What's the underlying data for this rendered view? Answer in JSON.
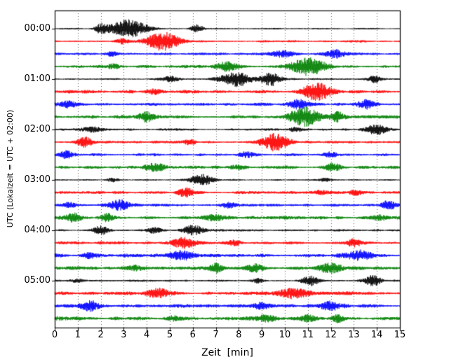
{
  "chart_data": {
    "type": "line",
    "subtype": "helicorder-dayplot-seismogram",
    "title": "",
    "xlabel": "Zeit  [min]",
    "ylabel": "UTC (Lokalzeit = UTC + 02:00)",
    "xlim": [
      0,
      15
    ],
    "x_ticks": [
      "0",
      "1",
      "2",
      "3",
      "4",
      "5",
      "6",
      "7",
      "8",
      "9",
      "10",
      "11",
      "12",
      "13",
      "14",
      "15"
    ],
    "y_tick_labels": [
      "00:00",
      "01:00",
      "02:00",
      "03:00",
      "04:00",
      "05:00"
    ],
    "minutes_per_line": 15,
    "lines_per_hour": 4,
    "num_traces": 24,
    "color_cycle": [
      "#000000",
      "#ff0000",
      "#0000ff",
      "#008000"
    ],
    "grid": {
      "vertical": "dotted",
      "horizontal": "none"
    },
    "legend": "none",
    "bursts_format": "[center_minute, sigma_minutes, relative_amplitude]",
    "traces": [
      {
        "start": "00:00",
        "color": "#000000",
        "base": 0.06,
        "bursts": [
          [
            3.2,
            0.8,
            1.0
          ],
          [
            6.2,
            0.25,
            0.45
          ],
          [
            2.0,
            0.25,
            0.5
          ]
        ]
      },
      {
        "start": "00:15",
        "color": "#ff0000",
        "base": 0.1,
        "bursts": [
          [
            4.7,
            0.7,
            1.0
          ],
          [
            2.9,
            0.3,
            0.25
          ]
        ]
      },
      {
        "start": "00:30",
        "color": "#0000ff",
        "base": 0.1,
        "bursts": [
          [
            9.9,
            0.5,
            0.4
          ],
          [
            12.2,
            0.45,
            0.45
          ],
          [
            2.5,
            0.3,
            0.2
          ]
        ]
      },
      {
        "start": "00:45",
        "color": "#008000",
        "base": 0.12,
        "bursts": [
          [
            7.5,
            0.5,
            0.5
          ],
          [
            11.0,
            0.8,
            0.9
          ],
          [
            2.5,
            0.3,
            0.25
          ]
        ]
      },
      {
        "start": "01:00",
        "color": "#000000",
        "base": 0.08,
        "bursts": [
          [
            7.9,
            0.7,
            0.8
          ],
          [
            9.4,
            0.4,
            0.7
          ],
          [
            5.0,
            0.4,
            0.3
          ],
          [
            13.9,
            0.25,
            0.35
          ]
        ]
      },
      {
        "start": "01:15",
        "color": "#ff0000",
        "base": 0.14,
        "bursts": [
          [
            11.4,
            0.6,
            0.9
          ],
          [
            4.3,
            0.3,
            0.25
          ]
        ]
      },
      {
        "start": "01:30",
        "color": "#0000ff",
        "base": 0.13,
        "bursts": [
          [
            0.6,
            0.3,
            0.4
          ],
          [
            10.6,
            0.5,
            0.45
          ],
          [
            13.5,
            0.35,
            0.45
          ]
        ]
      },
      {
        "start": "01:45",
        "color": "#008000",
        "base": 0.14,
        "bursts": [
          [
            4.0,
            0.4,
            0.45
          ],
          [
            10.9,
            0.7,
            0.95
          ],
          [
            12.3,
            0.3,
            0.5
          ]
        ]
      },
      {
        "start": "02:00",
        "color": "#000000",
        "base": 0.09,
        "bursts": [
          [
            1.6,
            0.5,
            0.3
          ],
          [
            14.0,
            0.45,
            0.55
          ],
          [
            10.5,
            0.3,
            0.25
          ]
        ]
      },
      {
        "start": "02:15",
        "color": "#ff0000",
        "base": 0.12,
        "bursts": [
          [
            1.3,
            0.35,
            0.45
          ],
          [
            9.6,
            0.55,
            1.0
          ],
          [
            5.9,
            0.25,
            0.25
          ]
        ]
      },
      {
        "start": "02:30",
        "color": "#0000ff",
        "base": 0.12,
        "bursts": [
          [
            0.5,
            0.3,
            0.45
          ],
          [
            8.3,
            0.35,
            0.3
          ],
          [
            12.0,
            0.3,
            0.25
          ]
        ]
      },
      {
        "start": "02:45",
        "color": "#008000",
        "base": 0.13,
        "bursts": [
          [
            4.4,
            0.5,
            0.45
          ],
          [
            12.1,
            0.35,
            0.45
          ],
          [
            8.0,
            0.3,
            0.25
          ]
        ]
      },
      {
        "start": "03:00",
        "color": "#000000",
        "base": 0.07,
        "bursts": [
          [
            6.4,
            0.5,
            0.6
          ],
          [
            2.5,
            0.25,
            0.2
          ],
          [
            11.8,
            0.3,
            0.15
          ]
        ]
      },
      {
        "start": "03:15",
        "color": "#ff0000",
        "base": 0.12,
        "bursts": [
          [
            5.7,
            0.3,
            0.55
          ],
          [
            11.5,
            0.3,
            0.2
          ],
          [
            13.1,
            0.3,
            0.25
          ]
        ]
      },
      {
        "start": "03:30",
        "color": "#0000ff",
        "base": 0.12,
        "bursts": [
          [
            2.8,
            0.45,
            0.55
          ],
          [
            14.5,
            0.3,
            0.5
          ],
          [
            7.5,
            0.3,
            0.25
          ],
          [
            0.6,
            0.3,
            0.3
          ]
        ]
      },
      {
        "start": "03:45",
        "color": "#008000",
        "base": 0.14,
        "bursts": [
          [
            0.8,
            0.35,
            0.5
          ],
          [
            2.3,
            0.3,
            0.35
          ],
          [
            6.9,
            0.4,
            0.3
          ],
          [
            14.1,
            0.3,
            0.3
          ]
        ]
      },
      {
        "start": "04:00",
        "color": "#000000",
        "base": 0.09,
        "bursts": [
          [
            2.0,
            0.35,
            0.45
          ],
          [
            6.0,
            0.45,
            0.55
          ],
          [
            4.3,
            0.3,
            0.3
          ]
        ]
      },
      {
        "start": "04:15",
        "color": "#ff0000",
        "base": 0.13,
        "bursts": [
          [
            5.6,
            0.5,
            0.5
          ],
          [
            13.0,
            0.35,
            0.4
          ],
          [
            7.8,
            0.3,
            0.3
          ]
        ]
      },
      {
        "start": "04:30",
        "color": "#0000ff",
        "base": 0.15,
        "bursts": [
          [
            5.5,
            0.5,
            0.5
          ],
          [
            13.2,
            0.6,
            0.5
          ],
          [
            1.5,
            0.3,
            0.3
          ]
        ]
      },
      {
        "start": "04:45",
        "color": "#008000",
        "base": 0.15,
        "bursts": [
          [
            7.0,
            0.3,
            0.4
          ],
          [
            8.7,
            0.3,
            0.4
          ],
          [
            12.0,
            0.5,
            0.5
          ],
          [
            3.5,
            0.3,
            0.2
          ]
        ]
      },
      {
        "start": "05:00",
        "color": "#000000",
        "base": 0.08,
        "bursts": [
          [
            11.1,
            0.35,
            0.5
          ],
          [
            13.8,
            0.4,
            0.55
          ],
          [
            8.8,
            0.25,
            0.25
          ],
          [
            1.0,
            0.25,
            0.2
          ]
        ]
      },
      {
        "start": "05:15",
        "color": "#ff0000",
        "base": 0.14,
        "bursts": [
          [
            4.5,
            0.45,
            0.5
          ],
          [
            10.4,
            0.7,
            0.55
          ]
        ]
      },
      {
        "start": "05:30",
        "color": "#0000ff",
        "base": 0.14,
        "bursts": [
          [
            1.5,
            0.45,
            0.5
          ],
          [
            9.0,
            0.3,
            0.35
          ],
          [
            12.0,
            0.45,
            0.5
          ]
        ]
      },
      {
        "start": "05:45",
        "color": "#008000",
        "base": 0.18,
        "bursts": [
          [
            9.3,
            0.4,
            0.3
          ],
          [
            11.0,
            0.4,
            0.3
          ],
          [
            12.3,
            0.3,
            0.3
          ],
          [
            5.2,
            0.3,
            0.2
          ]
        ]
      }
    ]
  },
  "colors": {
    "background": "#ffffff",
    "axes": "#000000",
    "grid": "#000000"
  }
}
